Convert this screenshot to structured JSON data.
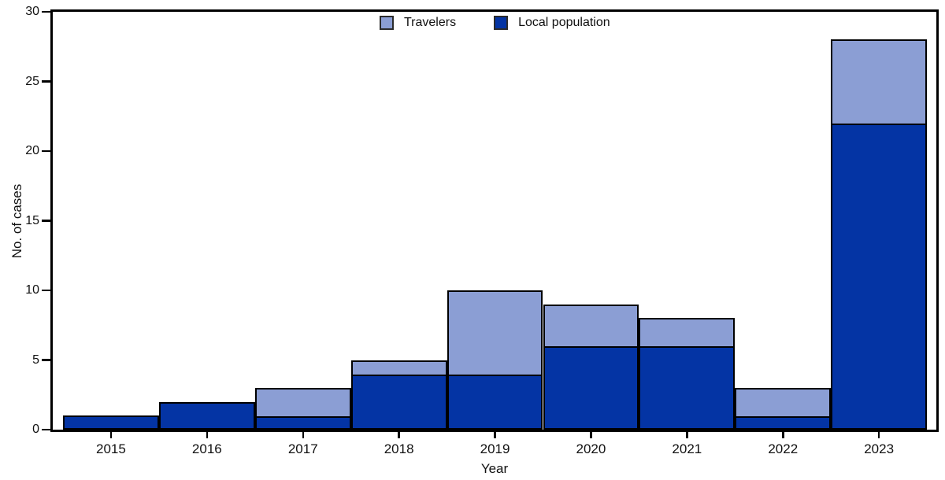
{
  "chart_data": {
    "type": "bar",
    "stacked": true,
    "title": "",
    "xlabel": "Year",
    "ylabel": "No. of cases",
    "categories": [
      "2015",
      "2016",
      "2017",
      "2018",
      "2019",
      "2020",
      "2021",
      "2022",
      "2023"
    ],
    "series": [
      {
        "name": "Travelers",
        "color": "#8B9ED4",
        "values": [
          0,
          0,
          2,
          1,
          6,
          3,
          2,
          2,
          6
        ]
      },
      {
        "name": "Local population",
        "color": "#0434A4",
        "values": [
          1,
          2,
          1,
          4,
          4,
          6,
          6,
          1,
          22
        ]
      }
    ],
    "totals": [
      1,
      2,
      3,
      5,
      10,
      9,
      8,
      3,
      28
    ],
    "ylim": [
      0,
      30
    ],
    "ytick_step": 5,
    "yticks": [
      0,
      5,
      10,
      15,
      20,
      25,
      30
    ],
    "grid": false,
    "legend_position": "top-center",
    "colors": {
      "travelers": "#8B9ED4",
      "local_population": "#0434A4",
      "axis": "#000000",
      "background": "#ffffff"
    }
  }
}
